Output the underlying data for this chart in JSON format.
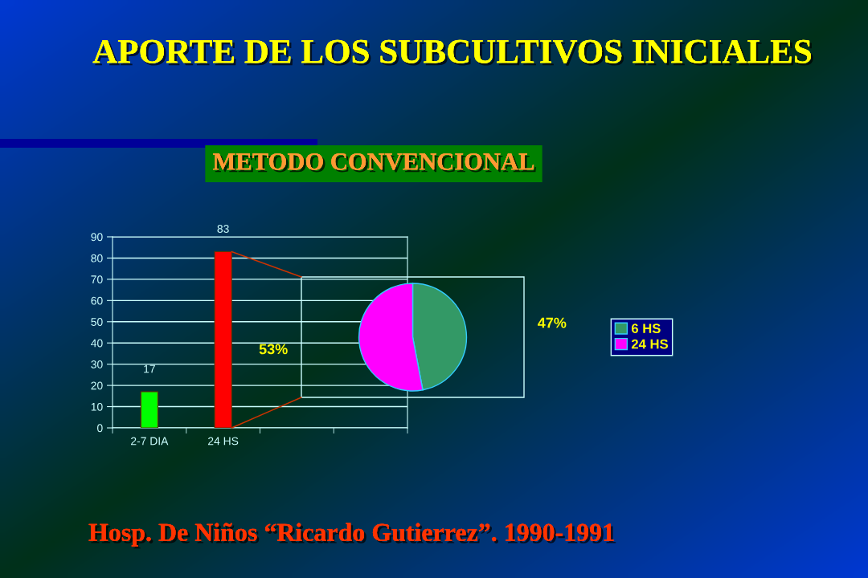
{
  "chart_data": [
    {
      "type": "bar",
      "title": "APORTE DE LOS SUBCULTIVOS INICIALES",
      "subtitle": "METODO CONVENCIONAL",
      "annotations": [
        "Hosp. De Niños “Ricardo Gutierrez”. 1990-1991"
      ],
      "categories": [
        "2-7 DIA",
        "24 HS",
        null,
        null
      ],
      "values": [
        17,
        83,
        null,
        null
      ],
      "colors": [
        "#00ff00",
        "#ff0000",
        null,
        null
      ],
      "ylim": [
        0,
        90
      ],
      "yticks": [
        0,
        10,
        20,
        30,
        40,
        50,
        60,
        70,
        80,
        90
      ],
      "grid": "y",
      "data_labels": true
    },
    {
      "type": "pie",
      "categories": [
        "6 HS",
        "24 HS"
      ],
      "values": [
        47,
        53
      ],
      "colors": [
        "#339966",
        "#ff00ff"
      ],
      "value_labels": [
        "47%",
        "53%"
      ],
      "legend": "right"
    }
  ]
}
